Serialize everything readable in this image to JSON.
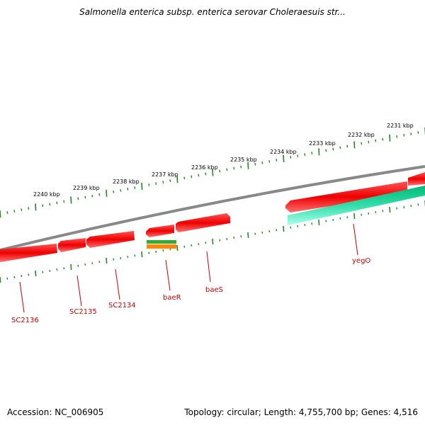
{
  "title": "Salmonella enterica subsp. enterica serovar Choleraesuis str...",
  "footer": {
    "accession": "Accession: NC_006905",
    "topology": "Topology: circular; Length: 4,755,700 bp; Genes: 4,516"
  },
  "scale_labels": [
    "2231 kbp",
    "2232 kbp",
    "2233 kbp",
    "2234 kbp",
    "2235 kbp",
    "2236 kbp",
    "2237 kbp",
    "2238 kbp",
    "2239 kbp",
    "2240 kbp"
  ],
  "gene_labels": [
    "yegO",
    "baeS",
    "baeR",
    "SC2134",
    "SC2135",
    "SC2136"
  ],
  "colors": {
    "backbone": "#808080",
    "gene_red": "#ee0000",
    "gene_teal": "#33ddaa",
    "gene_green": "#33aa33",
    "gene_orange": "#ff8800",
    "tick_green": "#228822",
    "label_red": "#cc0000"
  }
}
